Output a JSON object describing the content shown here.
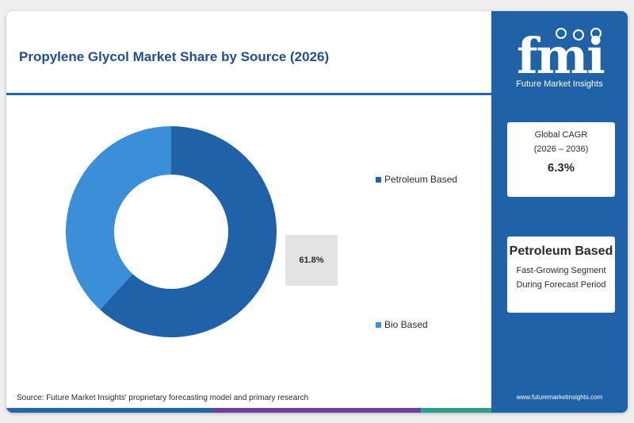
{
  "title": "Propylene Glycol Market Share by Source (2026)",
  "chart_data": {
    "type": "pie",
    "variant": "donut",
    "categories": [
      "Petroleum Based",
      "Bio Based"
    ],
    "values": [
      61.8,
      38.2
    ],
    "colors": [
      "#1f62a8",
      "#3b8fd9"
    ],
    "data_labels": [
      "61.8%"
    ]
  },
  "legend": [
    {
      "label": "Petroleum Based",
      "color": "#1f62a8"
    },
    {
      "label": "Bio Based",
      "color": "#3b8fd9"
    }
  ],
  "value_label": "61.8%",
  "source": "Source: Future Market Insights' proprietary forecasting model and primary research",
  "sidebar": {
    "logo_word": "fmi",
    "logo_text": "Future Market Insights",
    "cagr_label": "Global CAGR",
    "cagr_period": "(2026 – 2036)",
    "cagr_value": "6.3%",
    "segment_name": "Petroleum Based",
    "segment_desc_1": "Fast-Growing Segment",
    "segment_desc_2": "During Forecast Period",
    "website": "www.futuremarketinsights.com"
  },
  "colors": {
    "accent": "#1f62a8",
    "title": "#1f4e91",
    "bottom_bar": [
      "#2466a8",
      "#6a3fa0",
      "#2f9e8f"
    ]
  }
}
